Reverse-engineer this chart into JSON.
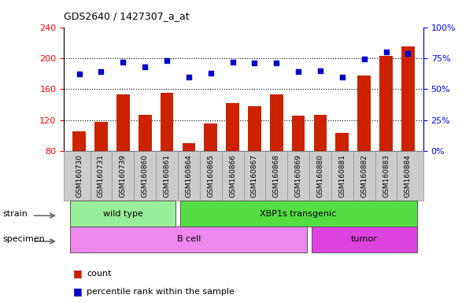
{
  "title": "GDS2640 / 1427307_a_at",
  "samples": [
    "GSM160730",
    "GSM160731",
    "GSM160739",
    "GSM160860",
    "GSM160861",
    "GSM160864",
    "GSM160865",
    "GSM160866",
    "GSM160867",
    "GSM160868",
    "GSM160869",
    "GSM160880",
    "GSM160881",
    "GSM160882",
    "GSM160883",
    "GSM160884"
  ],
  "counts": [
    105,
    118,
    153,
    127,
    155,
    90,
    116,
    142,
    138,
    153,
    126,
    127,
    103,
    178,
    203,
    215
  ],
  "percentiles": [
    62,
    64,
    72,
    68,
    73,
    60,
    63,
    72,
    71,
    71,
    64,
    65,
    60,
    74,
    80,
    79
  ],
  "ylim_left": [
    80,
    240
  ],
  "ylim_right": [
    0,
    100
  ],
  "yticks_left": [
    80,
    120,
    160,
    200,
    240
  ],
  "yticks_right": [
    0,
    25,
    50,
    75,
    100
  ],
  "bar_color": "#CC2200",
  "dot_color": "#0000CC",
  "background_color": "#ffffff",
  "tick_bg_color": "#CCCCCC",
  "strain_groups": [
    {
      "label": "wild type",
      "start": 0,
      "end": 4,
      "color": "#99EE99"
    },
    {
      "label": "XBP1s transgenic",
      "start": 5,
      "end": 15,
      "color": "#55DD44"
    }
  ],
  "specimen_groups": [
    {
      "label": "B cell",
      "start": 0,
      "end": 10,
      "color": "#EE88EE"
    },
    {
      "label": "tumor",
      "start": 11,
      "end": 15,
      "color": "#DD44DD"
    }
  ],
  "legend_count_label": "count",
  "legend_pct_label": "percentile rank within the sample",
  "xlabel_strain": "strain",
  "xlabel_specimen": "specimen"
}
